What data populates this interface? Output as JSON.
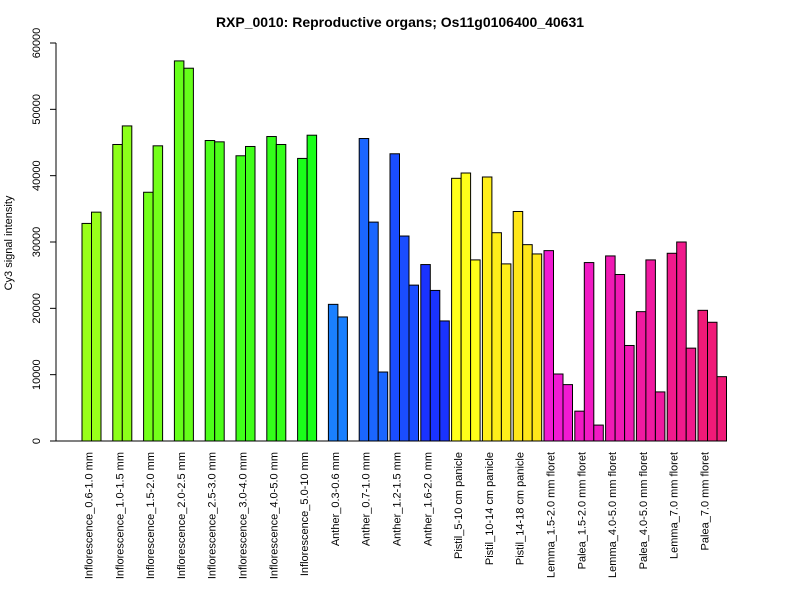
{
  "chart_data": {
    "type": "bar",
    "title": "RXP_0010: Reproductive organs; Os11g0106400_40631",
    "xlabel": "",
    "ylabel": "Cy3 signal intensity",
    "ylim": [
      0,
      60000
    ],
    "yticks": [
      0,
      10000,
      20000,
      30000,
      40000,
      50000,
      60000
    ],
    "ytick_labels": [
      "0",
      "10000",
      "20000",
      "30000",
      "40000",
      "50000",
      "60000"
    ],
    "grid": false,
    "legend": "none",
    "groups": [
      {
        "label": "Inflorescence_0.6-1.0 mm",
        "color": "#99ff1a",
        "values": [
          32800,
          34500
        ]
      },
      {
        "label": "Inflorescence_1.0-1.5 mm",
        "color": "#8cff1a",
        "values": [
          44700,
          47500
        ]
      },
      {
        "label": "Inflorescence_1.5-2.0 mm",
        "color": "#73ff1a",
        "values": [
          37500,
          44500
        ]
      },
      {
        "label": "Inflorescence_2.0-2.5 mm",
        "color": "#66ff1a",
        "values": [
          57300,
          56200
        ]
      },
      {
        "label": "Inflorescence_2.5-3.0 mm",
        "color": "#4dff1a",
        "values": [
          45300,
          45100
        ]
      },
      {
        "label": "Inflorescence_3.0-4.0 mm",
        "color": "#40ff1a",
        "values": [
          43000,
          44400
        ]
      },
      {
        "label": "Inflorescence_4.0-5.0 mm",
        "color": "#33ff1a",
        "values": [
          45900,
          44700
        ]
      },
      {
        "label": "Inflorescence_5.0-10 mm",
        "color": "#1aff1a",
        "values": [
          42600,
          46100
        ]
      },
      {
        "label": "Anther_0.3-0.6 mm",
        "color": "#1a80ff",
        "values": [
          20600,
          18700
        ]
      },
      {
        "label": "Anther_0.7-1.0 mm",
        "color": "#1a66ff",
        "values": [
          45600,
          33000,
          10400
        ]
      },
      {
        "label": "Anther_1.2-1.5 mm",
        "color": "#1a4dff",
        "values": [
          43300,
          30900,
          23500
        ]
      },
      {
        "label": "Anther_1.6-2.0 mm",
        "color": "#1a33ff",
        "values": [
          26600,
          22700,
          18100
        ]
      },
      {
        "label": "Pistil_5-10 cm panicle",
        "color": "#ffff1a",
        "values": [
          39600,
          40400,
          27300
        ]
      },
      {
        "label": "Pistil_10-14 cm panicle",
        "color": "#ffee1a",
        "values": [
          39800,
          31400,
          26700
        ]
      },
      {
        "label": "Pistil_14-18 cm panicle",
        "color": "#ffe61a",
        "values": [
          34600,
          29600,
          28200
        ]
      },
      {
        "label": "Lemma_1.5-2.0 mm floret",
        "color": "#f01ad2",
        "values": [
          28700,
          10100,
          8500
        ]
      },
      {
        "label": "Palea_1.5-2.0 mm floret",
        "color": "#f01ac3",
        "values": [
          4500,
          26900,
          2400
        ]
      },
      {
        "label": "Lemma_4.0-5.0 mm floret",
        "color": "#f01ab4",
        "values": [
          27900,
          25100,
          14400
        ]
      },
      {
        "label": "Palea_4.0-5.0 mm floret",
        "color": "#f01aa0",
        "values": [
          19500,
          27300,
          7400
        ]
      },
      {
        "label": "Lemma_7.0 mm floret",
        "color": "#f01a8c",
        "values": [
          28300,
          30000,
          14000
        ]
      },
      {
        "label": "Palea_7.0 mm floret",
        "color": "#f01a78",
        "values": [
          19700,
          17900,
          9700
        ]
      }
    ]
  }
}
